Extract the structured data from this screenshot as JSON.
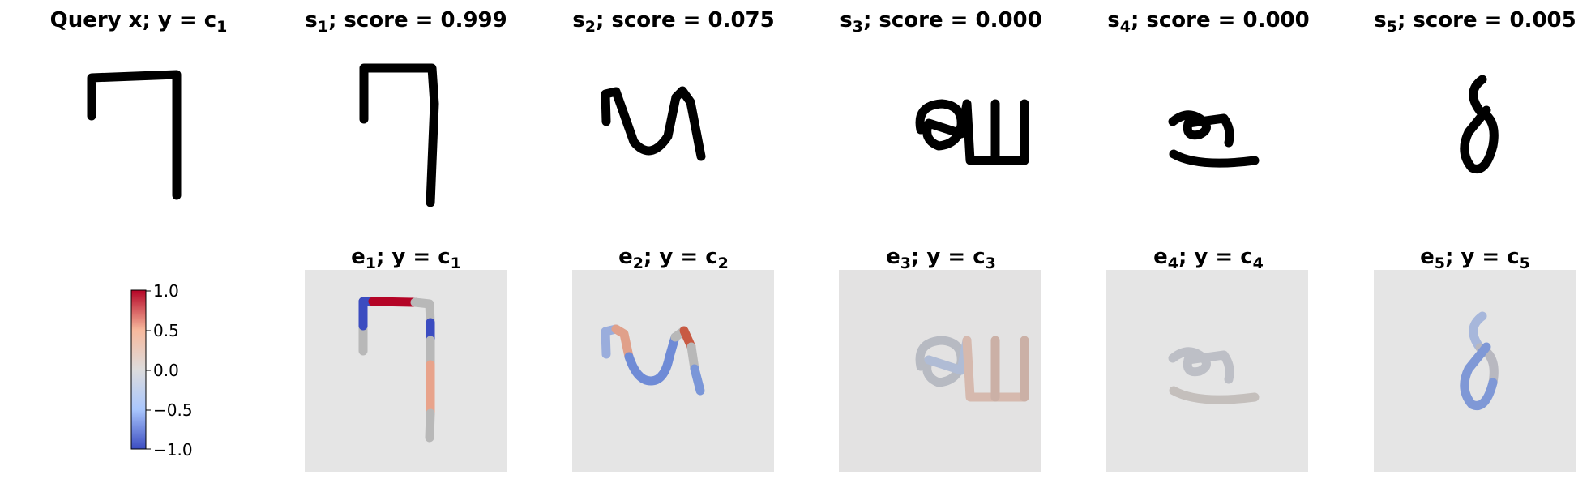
{
  "panels": [
    {
      "id": "query",
      "title": {
        "base": "Query x; y = c",
        "sub": "1"
      }
    },
    {
      "id": "s1",
      "title": {
        "base": "s",
        "sub": "1",
        "rest": "; score = 0.999"
      },
      "explanation_title": {
        "base": "e",
        "sub": "1",
        "mid": "; y = c",
        "sub2": "1"
      },
      "score": 0.999
    },
    {
      "id": "s2",
      "title": {
        "base": "s",
        "sub": "2",
        "rest": "; score = 0.075"
      },
      "explanation_title": {
        "base": "e",
        "sub": "2",
        "mid": "; y = c",
        "sub2": "2"
      },
      "score": 0.075
    },
    {
      "id": "s3",
      "title": {
        "base": "s",
        "sub": "3",
        "rest": "; score = 0.000"
      },
      "explanation_title": {
        "base": "e",
        "sub": "3",
        "mid": "; y = c",
        "sub2": "3"
      },
      "score": 0.0
    },
    {
      "id": "s4",
      "title": {
        "base": "s",
        "sub": "4",
        "rest": "; score = 0.000"
      },
      "explanation_title": {
        "base": "e",
        "sub": "4",
        "mid": "; y = c",
        "sub2": "4"
      },
      "score": 0.0
    },
    {
      "id": "s5",
      "title": {
        "base": "s",
        "sub": "5",
        "rest": "; score = 0.005"
      },
      "explanation_title": {
        "base": "e",
        "sub": "5",
        "mid": "; y = c",
        "sub2": "5"
      },
      "score": 0.005
    }
  ],
  "colorbar": {
    "min": -1.0,
    "max": 1.0,
    "ticks": [
      "1.0",
      "0.5",
      "0.0",
      "−0.5",
      "−1.0"
    ],
    "colors": [
      "#b40426",
      "#f7b89c",
      "#dddcdc",
      "#aac7fd",
      "#3b4cc0"
    ]
  },
  "colors": {
    "stroke": "#000000",
    "map_background": "#e5e5e5",
    "neutral_stroke": "#b8b8b8",
    "positive": "#b40426",
    "negative": "#3b4cc0"
  }
}
